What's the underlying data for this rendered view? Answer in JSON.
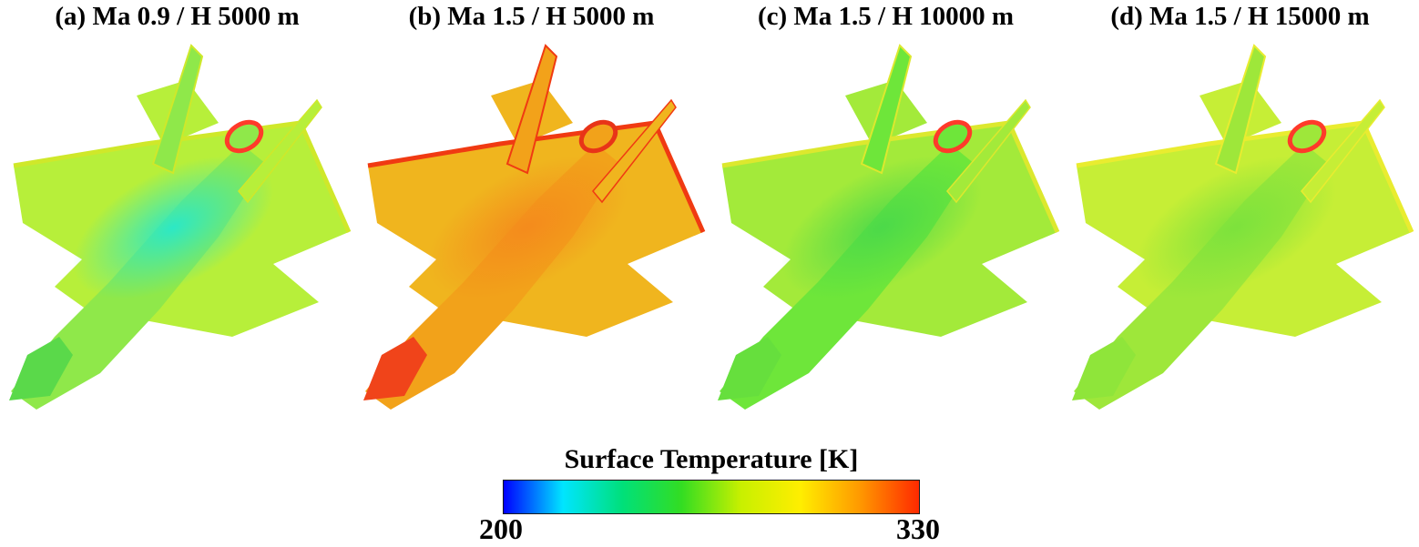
{
  "panels": [
    {
      "title": "(a) Ma 0.9 / H 5000 m",
      "body_color": "#8fe84a",
      "wing_color": "#b7ef3a",
      "core_color": "#27e8cc",
      "nose_color": "#5ad94a",
      "edge_color": "#cfe82a",
      "nozzle_color": "#ff3a2a"
    },
    {
      "title": "(b) Ma 1.5 / H 5000 m",
      "body_color": "#f2a21a",
      "wing_color": "#f0b51e",
      "core_color": "#f48a1c",
      "nose_color": "#f0441a",
      "edge_color": "#f03a12",
      "nozzle_color": "#e83418"
    },
    {
      "title": "(c) Ma 1.5 / H 10000 m",
      "body_color": "#6ee63a",
      "wing_color": "#a3ea3a",
      "core_color": "#4ad94a",
      "nose_color": "#66df3d",
      "edge_color": "#dce82e",
      "nozzle_color": "#ff3a2a"
    },
    {
      "title": "(d) Ma 1.5 / H 15000 m",
      "body_color": "#9ee73a",
      "wing_color": "#c6ee36",
      "core_color": "#7be23c",
      "nose_color": "#8fe53a",
      "edge_color": "#e9ec30",
      "nozzle_color": "#ff3a2a"
    }
  ],
  "colorbar": {
    "title": "Surface Temperature [K]",
    "min_label": "200",
    "max_label": "330",
    "min_value": 200,
    "max_value": 330,
    "colormap": [
      "#0000ff",
      "#00e5ff",
      "#00e07a",
      "#33dd22",
      "#c8f000",
      "#ffee00",
      "#ff9900",
      "#ff2a00"
    ]
  }
}
